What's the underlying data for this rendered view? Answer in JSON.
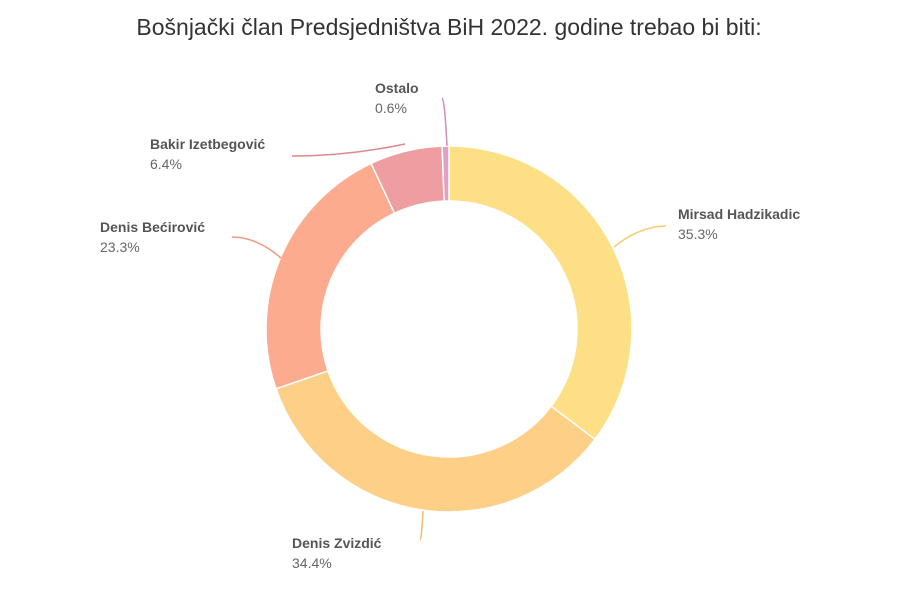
{
  "chart_data": {
    "type": "pie",
    "title": "Bošnjački član Predsjedništva BiH 2022. godine trebao bi biti:",
    "slices": [
      {
        "label": "Mirsad Hadzikadic",
        "value": 35.3,
        "display": "35.3%",
        "color": "#fddf86",
        "leader": "#f3cf70"
      },
      {
        "label": "Denis Zvizdić",
        "value": 34.4,
        "display": "34.4%",
        "color": "#fdcf87",
        "leader": "#f0c070"
      },
      {
        "label": "Denis Bećirović",
        "value": 23.3,
        "display": "23.3%",
        "color": "#fdab8e",
        "leader": "#f09a80"
      },
      {
        "label": "Bakir Izetbegović",
        "value": 6.4,
        "display": "6.4%",
        "color": "#ee9da0",
        "leader": "#e0868c"
      },
      {
        "label": "Ostalo",
        "value": 0.6,
        "display": "0.6%",
        "color": "#dfa2c4",
        "leader": "#cf8fb4"
      }
    ]
  }
}
